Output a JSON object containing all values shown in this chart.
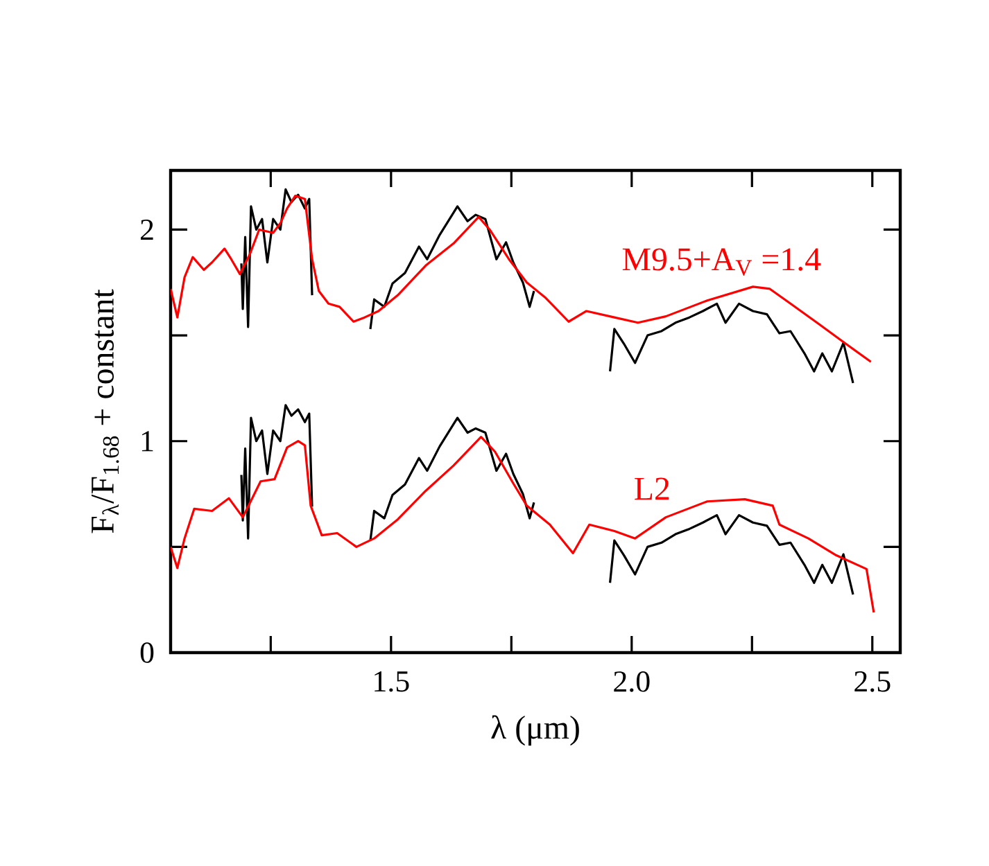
{
  "chart_data": {
    "type": "line",
    "xlabel": "λ (μm)",
    "ylabel": "F$_{λ}$/F$_{1.68}$ + constant",
    "xlim": [
      1.042,
      2.558
    ],
    "ylim": [
      0,
      2.28
    ],
    "xticks": [
      {
        "value": 1.25,
        "label": null
      },
      1.5,
      {
        "value": 1.75,
        "label": null
      },
      {
        "value": 2.0,
        "label": "2.0"
      },
      {
        "value": 2.25,
        "label": null
      },
      2.5
    ],
    "yticks": [
      0,
      {
        "value": 0.5,
        "label": null
      },
      1,
      {
        "value": 1.5,
        "label": null
      },
      2
    ],
    "series": [
      {
        "color": "#000000",
        "x": [
          1.189,
          1.192,
          1.197,
          1.203,
          1.209,
          1.22,
          1.232,
          1.243,
          1.255,
          1.27,
          1.281,
          1.293,
          1.307,
          1.321,
          1.33,
          1.336,
          1.4,
          1.457,
          1.465,
          1.486,
          1.503,
          1.529,
          1.558,
          1.575,
          1.601,
          1.638,
          1.659,
          1.676,
          1.696,
          1.719,
          1.739,
          1.754,
          1.774,
          1.788,
          1.797,
          1.9,
          1.955,
          1.964,
          1.984,
          2.007,
          2.033,
          2.062,
          2.091,
          2.12,
          2.148,
          2.177,
          2.195,
          2.223,
          2.252,
          2.281,
          2.307,
          2.33,
          2.359,
          2.379,
          2.396,
          2.416,
          2.44,
          2.46
        ],
        "values": [
          1.84,
          1.625,
          1.965,
          1.54,
          2.11,
          2.0,
          2.05,
          1.845,
          2.05,
          2.0,
          2.19,
          2.13,
          2.165,
          2.1,
          2.145,
          1.69,
          null,
          1.53,
          1.67,
          1.635,
          1.745,
          1.795,
          1.92,
          1.86,
          1.975,
          2.11,
          2.04,
          2.07,
          2.05,
          1.86,
          1.94,
          1.845,
          1.75,
          1.635,
          1.71,
          null,
          1.33,
          1.53,
          1.46,
          1.37,
          1.5,
          1.52,
          1.56,
          1.585,
          1.615,
          1.65,
          1.56,
          1.65,
          1.615,
          1.6,
          1.51,
          1.52,
          1.415,
          1.33,
          1.415,
          1.33,
          1.465,
          1.275
        ]
      },
      {
        "name": "M9.5+A$_{V}$ =1.4",
        "color": "#ff0000",
        "x": [
          1.042,
          1.056,
          1.071,
          1.088,
          1.111,
          1.128,
          1.154,
          1.168,
          1.186,
          1.206,
          1.226,
          1.255,
          1.27,
          1.284,
          1.301,
          1.321,
          1.336,
          1.35,
          1.37,
          1.393,
          1.422,
          1.445,
          1.474,
          1.514,
          1.572,
          1.63,
          1.682,
          1.705,
          1.745,
          1.782,
          1.82,
          1.869,
          1.906,
          1.964,
          2.013,
          2.071,
          2.157,
          2.252,
          2.287,
          2.33,
          2.388,
          2.445,
          2.497
        ],
        "values": [
          1.72,
          1.585,
          1.775,
          1.87,
          1.81,
          1.845,
          1.91,
          1.86,
          1.79,
          1.88,
          2.0,
          1.985,
          2.03,
          2.1,
          2.16,
          2.145,
          1.86,
          1.71,
          1.65,
          1.635,
          1.565,
          1.585,
          1.615,
          1.69,
          1.83,
          1.935,
          2.06,
          2.0,
          1.86,
          1.75,
          1.68,
          1.565,
          1.615,
          1.585,
          1.56,
          1.59,
          1.665,
          1.73,
          1.72,
          1.65,
          1.555,
          1.46,
          1.375
        ]
      },
      {
        "color": "#000000",
        "x": [
          1.189,
          1.192,
          1.197,
          1.203,
          1.209,
          1.22,
          1.232,
          1.243,
          1.255,
          1.27,
          1.281,
          1.293,
          1.307,
          1.321,
          1.33,
          1.336,
          1.4,
          1.457,
          1.465,
          1.486,
          1.503,
          1.529,
          1.558,
          1.575,
          1.601,
          1.638,
          1.659,
          1.676,
          1.696,
          1.719,
          1.739,
          1.754,
          1.774,
          1.788,
          1.797,
          1.9,
          1.955,
          1.964,
          1.984,
          2.007,
          2.033,
          2.062,
          2.091,
          2.12,
          2.148,
          2.177,
          2.195,
          2.223,
          2.252,
          2.281,
          2.307,
          2.33,
          2.359,
          2.379,
          2.396,
          2.416,
          2.44,
          2.46
        ],
        "values": [
          0.84,
          0.625,
          0.965,
          0.54,
          1.11,
          1.0,
          1.05,
          0.845,
          1.05,
          1.0,
          1.17,
          1.12,
          1.15,
          1.09,
          1.13,
          0.69,
          null,
          0.53,
          0.67,
          0.635,
          0.745,
          0.795,
          0.92,
          0.86,
          0.975,
          1.11,
          1.04,
          1.06,
          1.04,
          0.86,
          0.94,
          0.845,
          0.75,
          0.635,
          0.71,
          null,
          0.33,
          0.53,
          0.46,
          0.37,
          0.5,
          0.52,
          0.56,
          0.585,
          0.615,
          0.65,
          0.56,
          0.65,
          0.615,
          0.6,
          0.51,
          0.52,
          0.415,
          0.33,
          0.415,
          0.33,
          0.465,
          0.275
        ]
      },
      {
        "name": "L2",
        "color": "#ff0000",
        "x": [
          1.042,
          1.056,
          1.071,
          1.091,
          1.128,
          1.163,
          1.192,
          1.229,
          1.258,
          1.284,
          1.307,
          1.321,
          1.333,
          1.356,
          1.388,
          1.428,
          1.465,
          1.514,
          1.572,
          1.63,
          1.687,
          1.716,
          1.754,
          1.782,
          1.83,
          1.878,
          1.912,
          1.964,
          2.007,
          2.071,
          2.157,
          2.235,
          2.293,
          2.307,
          2.367,
          2.425,
          2.488,
          2.503
        ],
        "values": [
          0.5,
          0.4,
          0.54,
          0.68,
          0.67,
          0.73,
          0.64,
          0.81,
          0.82,
          0.97,
          1.0,
          0.98,
          0.695,
          0.555,
          0.565,
          0.5,
          0.54,
          0.63,
          0.765,
          0.885,
          1.02,
          0.95,
          0.8,
          0.695,
          0.605,
          0.47,
          0.605,
          0.575,
          0.54,
          0.64,
          0.715,
          0.725,
          0.695,
          0.605,
          0.54,
          0.46,
          0.395,
          0.19
        ]
      }
    ]
  }
}
